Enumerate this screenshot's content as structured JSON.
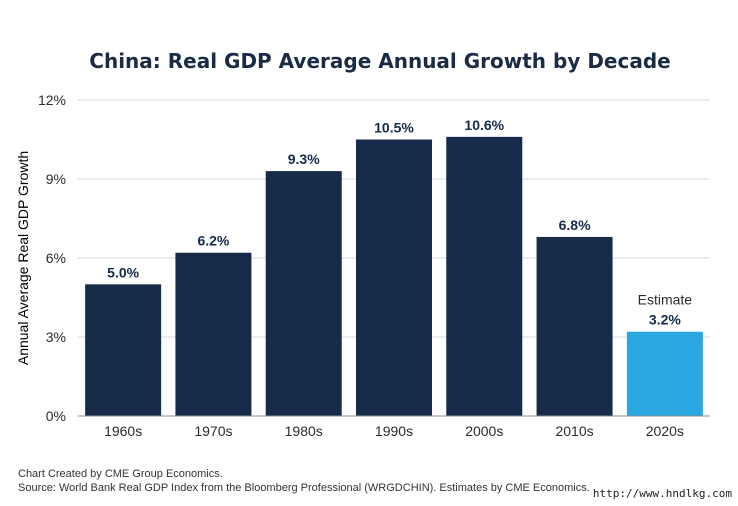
{
  "colors": {
    "bar": "#152B49",
    "estimate_bar": "#2AA7E1",
    "title": "#1A2B44",
    "grid": "#D9D9D9",
    "axis": "#8C8C8C",
    "estimate_text": "#1A2B44"
  },
  "chart_data": {
    "type": "bar",
    "title": "China: Real GDP Average Annual Growth by Decade",
    "xlabel": "",
    "ylabel": "Annual Average Real GDP Growth",
    "ylim": [
      0,
      12
    ],
    "yticks": [
      0,
      3,
      6,
      9,
      12
    ],
    "ytick_labels": [
      "0%",
      "3%",
      "6%",
      "9%",
      "12%"
    ],
    "grid": true,
    "categories": [
      "1960s",
      "1970s",
      "1980s",
      "1990s",
      "2000s",
      "2010s",
      "2020s"
    ],
    "values": [
      5.0,
      6.2,
      9.3,
      10.5,
      10.6,
      6.8,
      3.2
    ],
    "data_labels": [
      "5.0%",
      "6.2%",
      "9.3%",
      "10.5%",
      "10.6%",
      "6.8%",
      "3.2%"
    ],
    "estimate_index": 6,
    "estimate_annotation": "Estimate"
  },
  "footer": {
    "credit": "Chart Created by CME Group Economics.",
    "source": "Source:  World Bank Real GDP Index from the Bloomberg Professional (WRGDCHIN). Estimates by CME Economics."
  },
  "watermark": "http://www.hndlkg.com"
}
